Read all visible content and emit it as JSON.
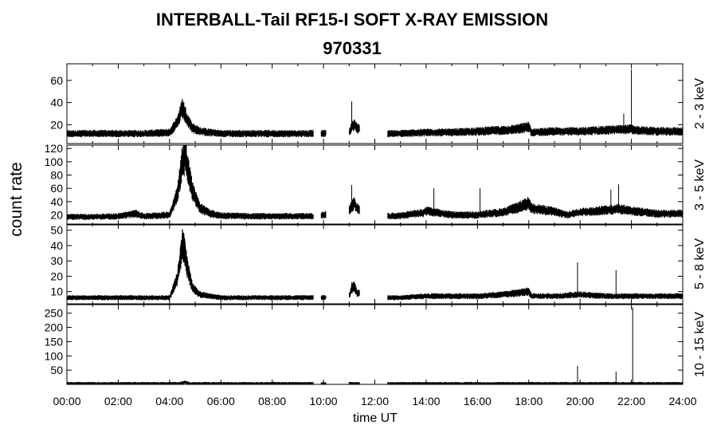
{
  "title": "INTERBALL-Tail RF15-I SOFT X-RAY EMISSION",
  "subtitle": "970331",
  "ylabel": "count rate",
  "xlabel": "time UT",
  "x_ticks": [
    "00:00",
    "02:00",
    "04:00",
    "06:00",
    "08:00",
    "10:00",
    "12:00",
    "14:00",
    "16:00",
    "18:00",
    "20:00",
    "22:00",
    "24:00"
  ],
  "chart_data": {
    "type": "line",
    "title": "INTERBALL-Tail RF15-I SOFT X-RAY EMISSION",
    "subtitle": "970331",
    "xlabel": "time UT",
    "ylabel": "count rate",
    "xlim": [
      0,
      24
    ],
    "x_unit": "hours UT",
    "data_gaps": [
      [
        9.6,
        9.9
      ],
      [
        10.1,
        11.0
      ],
      [
        11.4,
        12.5
      ]
    ],
    "panels": [
      {
        "name": "2 - 3 keV",
        "ylim": [
          3,
          75
        ],
        "yticks": [
          20,
          40,
          60
        ],
        "x": [
          0,
          1,
          2,
          3,
          4,
          4.3,
          4.5,
          4.6,
          4.7,
          4.9,
          5.2,
          5.6,
          6,
          7,
          8,
          9,
          9.6,
          9.9,
          11.0,
          11.1,
          11.2,
          11.3,
          12.5,
          13,
          14,
          15,
          16,
          17,
          17.5,
          18,
          18.1,
          19,
          20,
          21,
          22,
          22.1,
          23,
          24
        ],
        "values": [
          12,
          12,
          12,
          12,
          13,
          22,
          35,
          30,
          24,
          17,
          14,
          13,
          12,
          12,
          12,
          12,
          12,
          12,
          13,
          18,
          20,
          17,
          12,
          12,
          13,
          13,
          14,
          15,
          16,
          18,
          13,
          14,
          14,
          15,
          16,
          15,
          14,
          14
        ],
        "spikes": [
          {
            "x": 11.1,
            "y": 41
          },
          {
            "x": 22.0,
            "y": 70
          },
          {
            "x": 21.7,
            "y": 30
          }
        ]
      },
      {
        "name": "3 - 5 keV",
        "ylim": [
          5,
          125
        ],
        "yticks": [
          20,
          40,
          60,
          80,
          100,
          120
        ],
        "x": [
          0,
          1,
          2,
          2.7,
          3,
          4,
          4.3,
          4.5,
          4.6,
          4.7,
          4.9,
          5.2,
          5.6,
          6,
          7,
          8,
          9,
          9.6,
          9.9,
          11.0,
          11.1,
          11.2,
          11.3,
          12.5,
          13,
          13.9,
          14,
          15,
          16,
          17,
          17.5,
          18,
          18.1,
          19,
          19.5,
          20,
          21,
          21.5,
          22,
          23,
          24
        ],
        "values": [
          17,
          17,
          18,
          22,
          18,
          20,
          50,
          100,
          110,
          90,
          55,
          30,
          22,
          19,
          18,
          18,
          18,
          18,
          19,
          27,
          33,
          37,
          30,
          18,
          19,
          23,
          26,
          20,
          20,
          24,
          30,
          37,
          30,
          25,
          20,
          24,
          27,
          29,
          26,
          22,
          22
        ],
        "spikes": [
          {
            "x": 11.1,
            "y": 65
          },
          {
            "x": 14.3,
            "y": 60
          },
          {
            "x": 16.1,
            "y": 60
          },
          {
            "x": 21.5,
            "y": 66
          },
          {
            "x": 21.2,
            "y": 58
          }
        ]
      },
      {
        "name": "5 - 8 keV",
        "ylim": [
          2,
          54
        ],
        "yticks": [
          10,
          20,
          30,
          40,
          50
        ],
        "x": [
          0,
          1,
          2,
          3,
          4,
          4.3,
          4.5,
          4.6,
          4.7,
          4.9,
          5.2,
          5.6,
          6,
          7,
          8,
          9,
          9.6,
          9.9,
          11.0,
          11.1,
          11.2,
          11.3,
          12.5,
          13,
          14,
          15,
          16,
          17,
          17.5,
          18,
          18.1,
          19,
          20,
          21,
          22,
          23,
          24
        ],
        "values": [
          6,
          6,
          6,
          6,
          6,
          18,
          40,
          36,
          25,
          12,
          8,
          7,
          6,
          6,
          6,
          6,
          6,
          6,
          7,
          12,
          14,
          9,
          6,
          6,
          7,
          7,
          7,
          8,
          9,
          10,
          7,
          7,
          8,
          7,
          7,
          7,
          7
        ],
        "spikes": [
          {
            "x": 11.1,
            "y": 16
          },
          {
            "x": 19.9,
            "y": 29
          },
          {
            "x": 21.4,
            "y": 24
          }
        ]
      },
      {
        "name": "10 - 15 keV",
        "ylim": [
          0,
          280
        ],
        "yticks": [
          50,
          100,
          150,
          200,
          250
        ],
        "x": [
          0,
          4.4,
          4.6,
          4.8,
          9.6,
          9.9,
          11.0,
          11.4,
          12.5,
          24
        ],
        "values": [
          3,
          3,
          8,
          3,
          3,
          3,
          3,
          3,
          3,
          3
        ],
        "spikes": [
          {
            "x": 19.9,
            "y": 65
          },
          {
            "x": 21.4,
            "y": 45
          },
          {
            "x": 22.05,
            "y": 270
          }
        ]
      }
    ]
  }
}
